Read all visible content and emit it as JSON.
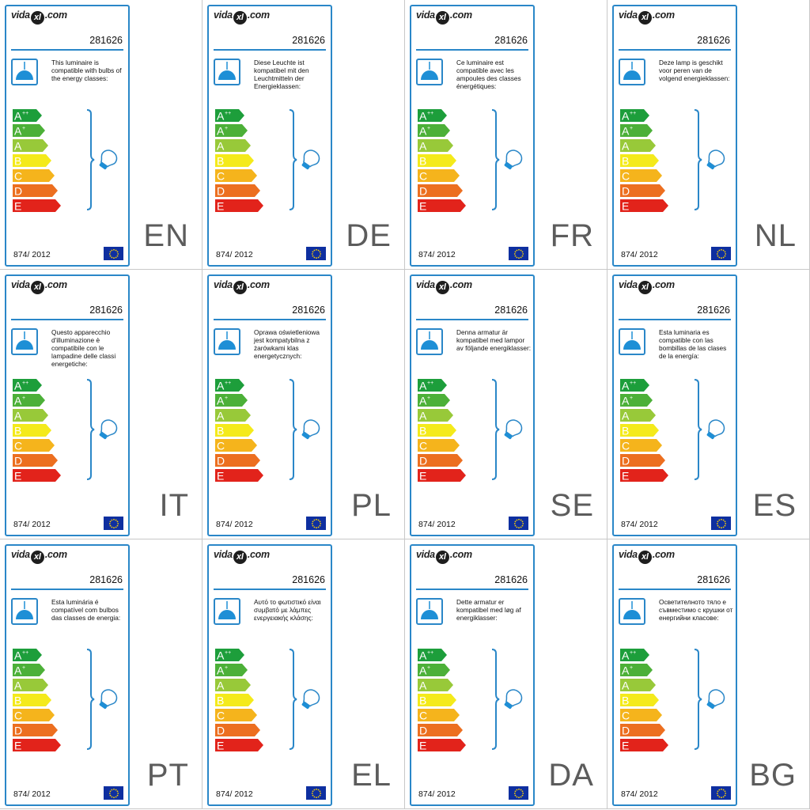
{
  "common": {
    "logo_left": "vida",
    "logo_mark": "xl",
    "logo_right": ".com",
    "product_code": "281626",
    "regulation": "874/ 2012"
  },
  "energy_classes": [
    {
      "label": "A",
      "sup": "++",
      "color": "#1d9e3b"
    },
    {
      "label": "A",
      "sup": "+",
      "color": "#4cb038"
    },
    {
      "label": "A",
      "sup": "",
      "color": "#98c939"
    },
    {
      "label": "B",
      "sup": "",
      "color": "#f4ea1b"
    },
    {
      "label": "C",
      "sup": "",
      "color": "#f5b41c"
    },
    {
      "label": "D",
      "sup": "",
      "color": "#ec6f20"
    },
    {
      "label": "E",
      "sup": "",
      "color": "#e2231b"
    }
  ],
  "colors": {
    "frame": "#2a87c8",
    "lamp": "#1e8fd6",
    "eu_flag": "#0e2fa0",
    "eu_stars": "#ffd200"
  },
  "icons": [
    "pendant-lamp-icon",
    "light-bulb-icon",
    "eu-flag-icon"
  ],
  "labels": [
    {
      "lang": "EN",
      "text": "This luminaire is compatible with bulbs of the energy classes:"
    },
    {
      "lang": "DE",
      "text": "Diese Leuchte ist kompatibel mit den Leuchtmitteln der Energieklassen:"
    },
    {
      "lang": "FR",
      "text": "Ce luminaire est compatible avec les ampoules des classes énergétiques:"
    },
    {
      "lang": "NL",
      "text": "Deze lamp is geschikt voor peren van de volgend energieklassen:"
    },
    {
      "lang": "IT",
      "text": "Questo apparecchio d'illuminazione è compatibile con le lampadine delle classi energetiche:"
    },
    {
      "lang": "PL",
      "text": "Oprawa oświetleniowa jest kompatybilna z żarówkami klas energetycznych:"
    },
    {
      "lang": "SE",
      "text": "Denna armatur är kompatibel med lampor av följande energiklasser:"
    },
    {
      "lang": "ES",
      "text": "Esta luminaria es compatible con las bombillas de las clases de la energía:"
    },
    {
      "lang": "PT",
      "text": "Esta luminária é compatível com bulbos das classes de energia:"
    },
    {
      "lang": "EL",
      "text": "Αυτό το φωτιστικό είναι συμβατό με λάμπες ενεργειακής κλάσης:"
    },
    {
      "lang": "DA",
      "text": "Dette armatur er kompatibel med løg af energiklasser:"
    },
    {
      "lang": "BG",
      "text": "Осветителното тяло е съвместимо с крушки от енергийни класове:"
    }
  ]
}
